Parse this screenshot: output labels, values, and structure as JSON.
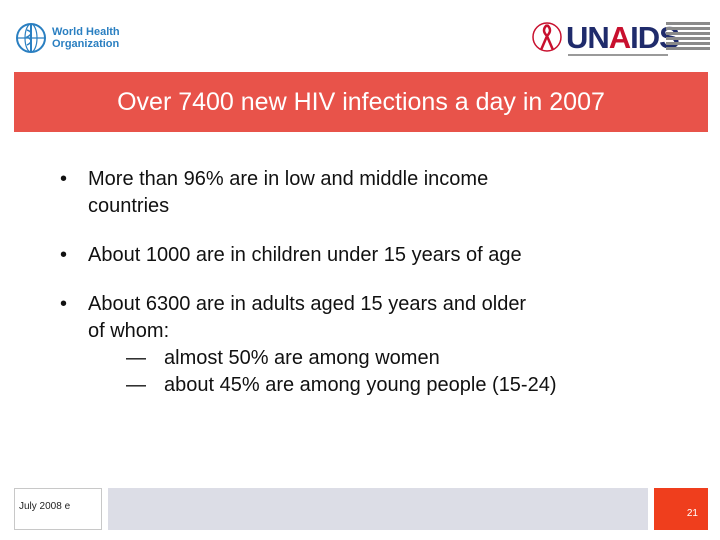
{
  "logos": {
    "who": {
      "line1": "World Health",
      "line2": "Organization"
    },
    "unaids": {
      "brand_prefix": "UN",
      "brand_a": "A",
      "brand_suffix": "IDS"
    }
  },
  "title": "Over 7400 new HIV infections a day in 2007",
  "bullets": [
    {
      "line1": "More than 96% are in low and middle income",
      "line2": "countries"
    },
    {
      "line1": "About 1000 are in children under 15 years of age"
    },
    {
      "line1": "About 6300 are in adults aged 15 years and older",
      "line2": "of whom:",
      "subitems": [
        {
          "dash": "—",
          "text": "almost 50% are among women"
        },
        {
          "dash": "—",
          "text": "about 45% are among young people (15-24)"
        }
      ]
    }
  ],
  "footer": {
    "date": "July 2008 e",
    "page_number": "21"
  },
  "colors": {
    "banner": "#e8534a",
    "page_box": "#ef3e1d",
    "footer_mid": "#dcdde6",
    "who_blue": "#2a7fc1",
    "unaids_navy": "#1f2b6b"
  }
}
